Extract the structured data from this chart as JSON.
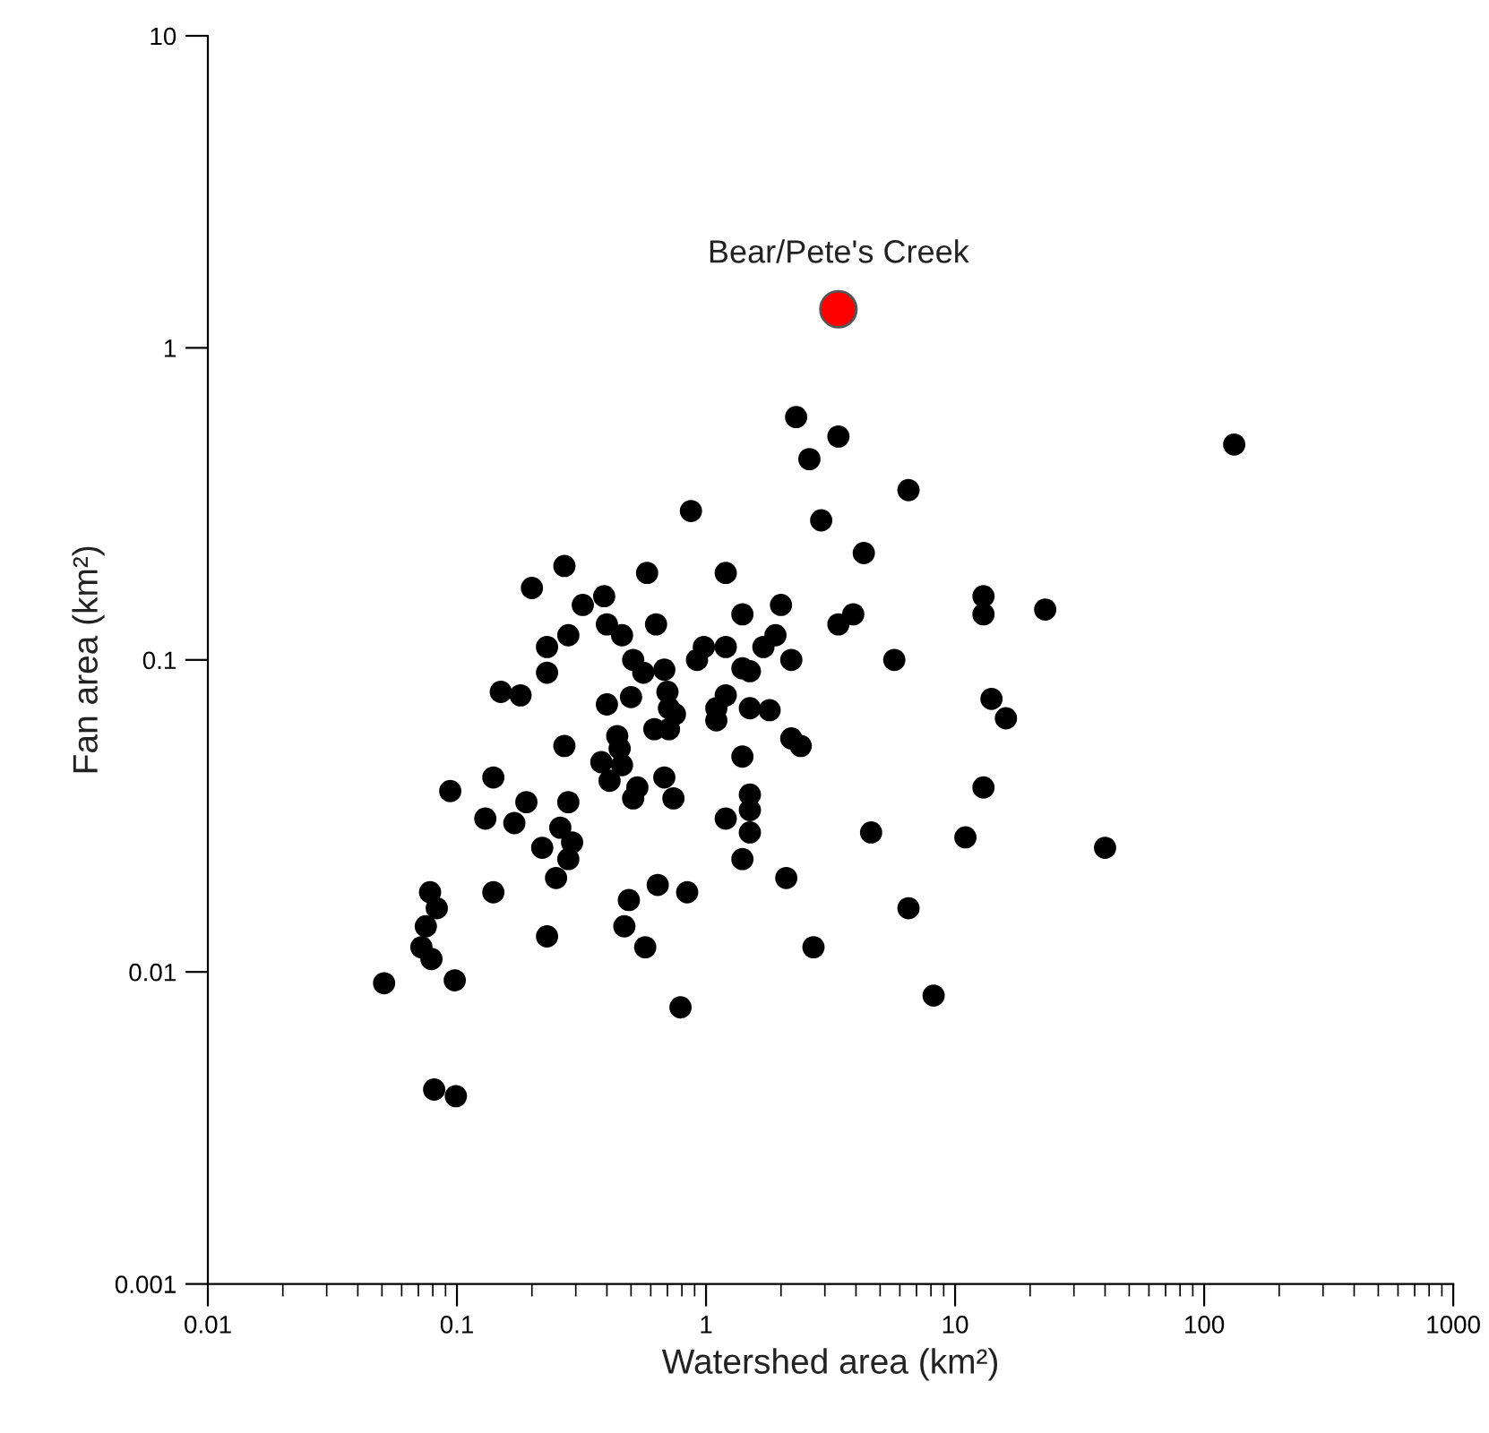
{
  "chart_data": {
    "type": "scatter",
    "xlabel": "Watershed area (km²)",
    "ylabel": "Fan area (km²)",
    "log": "xy",
    "grid": false,
    "legend": false,
    "marker": "circle",
    "xlim": [
      0.01,
      1000
    ],
    "ylim": [
      0.001,
      10
    ],
    "xticks": [
      0.01,
      0.1,
      1,
      10,
      100,
      1000
    ],
    "yticks": [
      0.001,
      0.01,
      0.1,
      1,
      10
    ],
    "series": [
      {
        "color": "#000000",
        "x": [
          0.87,
          2.9,
          4.3,
          0.27,
          0.2,
          0.58,
          1.2,
          0.32,
          0.39,
          0.4,
          0.46,
          0.63,
          0.28,
          0.23,
          0.23,
          0.15,
          0.18,
          1.4,
          2.0,
          1.9,
          3.9,
          3.4,
          0.98,
          0.92,
          1.2,
          1.7,
          2.2,
          5.7,
          0.51,
          0.56,
          0.68,
          1.4,
          1.5,
          0.7,
          0.71,
          0.75,
          0.62,
          0.71,
          0.5,
          0.4,
          1.2,
          1.1,
          1.1,
          1.5,
          1.8,
          2.2,
          2.4,
          1.4,
          0.27,
          0.44,
          0.45,
          0.38,
          0.46,
          0.41,
          0.53,
          0.51,
          0.68,
          0.74,
          1.5,
          1.5,
          1.2,
          1.5,
          1.4,
          4.6,
          2.1,
          0.094,
          0.14,
          0.19,
          0.28,
          0.13,
          0.17,
          0.26,
          0.29,
          0.22,
          0.28,
          0.25,
          0.14,
          0.078,
          0.083,
          0.075,
          0.072,
          0.079,
          0.051,
          0.098,
          0.23,
          0.64,
          0.84,
          0.49,
          0.47,
          0.57,
          2.7,
          0.79,
          0.081,
          0.099,
          2.3,
          3.4,
          2.6,
          132,
          6.5,
          13,
          13,
          23,
          14,
          16,
          13,
          11,
          40,
          6.5,
          8.2
        ],
        "values": [
          0.3,
          0.28,
          0.22,
          0.2,
          0.17,
          0.19,
          0.19,
          0.15,
          0.16,
          0.13,
          0.12,
          0.13,
          0.12,
          0.11,
          0.091,
          0.079,
          0.077,
          0.14,
          0.15,
          0.12,
          0.14,
          0.13,
          0.11,
          0.1,
          0.11,
          0.11,
          0.1,
          0.1,
          0.1,
          0.091,
          0.093,
          0.094,
          0.092,
          0.079,
          0.07,
          0.067,
          0.06,
          0.06,
          0.076,
          0.072,
          0.077,
          0.07,
          0.064,
          0.07,
          0.069,
          0.056,
          0.053,
          0.049,
          0.053,
          0.057,
          0.052,
          0.047,
          0.046,
          0.041,
          0.039,
          0.036,
          0.042,
          0.036,
          0.037,
          0.033,
          0.031,
          0.028,
          0.023,
          0.028,
          0.02,
          0.038,
          0.042,
          0.035,
          0.035,
          0.031,
          0.03,
          0.029,
          0.026,
          0.025,
          0.023,
          0.02,
          0.018,
          0.018,
          0.016,
          0.014,
          0.012,
          0.011,
          0.0092,
          0.0094,
          0.013,
          0.019,
          0.018,
          0.017,
          0.014,
          0.012,
          0.012,
          0.0077,
          0.0042,
          0.004,
          0.6,
          0.52,
          0.44,
          0.49,
          0.35,
          0.16,
          0.14,
          0.145,
          0.075,
          0.065,
          0.039,
          0.027,
          0.025,
          0.016,
          0.0084
        ]
      },
      {
        "color": "#ff0000",
        "x": [
          3.4
        ],
        "values": [
          1.33
        ]
      }
    ],
    "annotations": [
      {
        "text": "Bear/Pete's Creek",
        "x": 3.4,
        "y": 1.33
      }
    ]
  }
}
